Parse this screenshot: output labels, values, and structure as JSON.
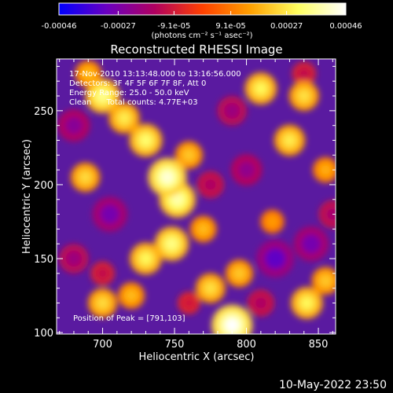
{
  "chart_data": {
    "type": "heatmap",
    "title": "Reconstructed RHESSI Image",
    "xlabel": "Heliocentric X (arcsec)",
    "ylabel": "Heliocentric Y (arcsec)",
    "xlim": [
      668,
      862
    ],
    "ylim": [
      99,
      285
    ],
    "x_ticks": [
      700,
      750,
      800,
      850
    ],
    "y_ticks": [
      100,
      150,
      200,
      250
    ],
    "colorbar": {
      "range": [
        -0.00046,
        0.00046
      ],
      "tick_values": [
        -0.00046,
        -0.00027,
        -9.1e-05,
        9.1e-05,
        0.00027,
        0.00046
      ],
      "tick_labels": [
        "-0.00046",
        "-0.00027",
        "-9.1e-05",
        "9.1e-05",
        "0.00027",
        "0.00046"
      ],
      "label": "(photons cm⁻² s⁻¹ asec⁻²)",
      "colormap_stops": [
        "#0000ff",
        "#6a00c0",
        "#b00060",
        "#ff4000",
        "#ffa000",
        "#ffff60",
        "#ffffff"
      ]
    },
    "annotations": {
      "time_range": "17-Nov-2010 13:13:48.000 to 13:16:56.000",
      "detectors": "Detectors: 3F 4F 5F 6F 7F 8F, Att 0",
      "energy_range": "Energy Range: 25.0 - 50.0 keV",
      "method": "Clean      Total counts: 4.77E+03",
      "peak": "Position of Peak = [791,103]"
    },
    "features": [
      {
        "x": 700,
        "y": 260,
        "value": 0.00035
      },
      {
        "x": 715,
        "y": 245,
        "value": 0.00028
      },
      {
        "x": 688,
        "y": 205,
        "value": 0.00025
      },
      {
        "x": 730,
        "y": 230,
        "value": 0.00032
      },
      {
        "x": 745,
        "y": 205,
        "value": 0.00042
      },
      {
        "x": 752,
        "y": 190,
        "value": 0.00038
      },
      {
        "x": 760,
        "y": 220,
        "value": 0.00022
      },
      {
        "x": 730,
        "y": 150,
        "value": 0.0003
      },
      {
        "x": 748,
        "y": 160,
        "value": 0.00034
      },
      {
        "x": 770,
        "y": 170,
        "value": 0.0002
      },
      {
        "x": 700,
        "y": 120,
        "value": 0.00025
      },
      {
        "x": 720,
        "y": 125,
        "value": 0.0002
      },
      {
        "x": 790,
        "y": 105,
        "value": 0.00046
      },
      {
        "x": 775,
        "y": 130,
        "value": 0.00026
      },
      {
        "x": 795,
        "y": 140,
        "value": 0.00022
      },
      {
        "x": 810,
        "y": 265,
        "value": 0.0003
      },
      {
        "x": 830,
        "y": 230,
        "value": 0.00028
      },
      {
        "x": 840,
        "y": 260,
        "value": 0.00026
      },
      {
        "x": 855,
        "y": 210,
        "value": 0.00018
      },
      {
        "x": 818,
        "y": 175,
        "value": 0.00015
      },
      {
        "x": 842,
        "y": 120,
        "value": 0.0003
      },
      {
        "x": 855,
        "y": 135,
        "value": 0.00022
      },
      {
        "x": 690,
        "y": 275,
        "value": 0.0002
      },
      {
        "x": 680,
        "y": 240,
        "value": -0.0003
      },
      {
        "x": 705,
        "y": 180,
        "value": -0.00035
      },
      {
        "x": 790,
        "y": 250,
        "value": -0.00025
      },
      {
        "x": 775,
        "y": 200,
        "value": -0.0002
      },
      {
        "x": 800,
        "y": 210,
        "value": -0.00028
      },
      {
        "x": 820,
        "y": 150,
        "value": -0.0004
      },
      {
        "x": 845,
        "y": 160,
        "value": -0.00035
      },
      {
        "x": 680,
        "y": 150,
        "value": -0.00025
      },
      {
        "x": 700,
        "y": 140,
        "value": -0.00015
      },
      {
        "x": 810,
        "y": 120,
        "value": -0.0002
      },
      {
        "x": 760,
        "y": 120,
        "value": -0.00012
      },
      {
        "x": 840,
        "y": 275,
        "value": -0.00015
      },
      {
        "x": 860,
        "y": 180,
        "value": -0.00022
      }
    ]
  },
  "footer": {
    "date": "10-May-2022 23:50"
  }
}
